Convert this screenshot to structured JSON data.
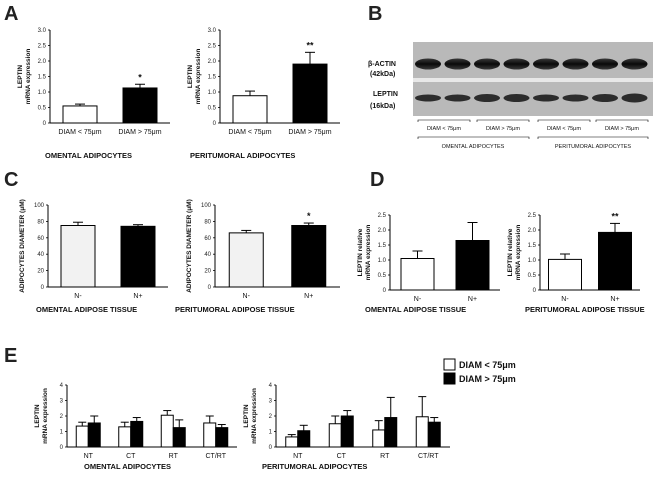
{
  "figure": {
    "panel_letters": [
      "A",
      "B",
      "C",
      "D",
      "E"
    ]
  },
  "chart_data": [
    {
      "id": "A1",
      "type": "bar",
      "panel": "A",
      "categories": [
        "DIAM < 75μm",
        "DIAM > 75μm"
      ],
      "series": [
        {
          "values": [
            0.55,
            1.13
          ],
          "errors": [
            0.06,
            0.12
          ],
          "fills": [
            "#ffffff",
            "#000000"
          ]
        }
      ],
      "ylim": [
        0,
        3
      ],
      "yticks": [
        "0",
        "0.5",
        "1.0",
        "1.5",
        "2.0",
        "2.5",
        "3.0"
      ],
      "ylabel": "LEPTIN\nmRNA expression",
      "caption": "OMENTAL ADIPOCYTES",
      "significance": [
        {
          "bar": 1,
          "text": "*"
        }
      ]
    },
    {
      "id": "A2",
      "type": "bar",
      "panel": "A",
      "categories": [
        "DIAM < 75μm",
        "DIAM > 75μm"
      ],
      "series": [
        {
          "values": [
            0.88,
            1.9
          ],
          "errors": [
            0.15,
            0.38
          ],
          "fills": [
            "#ffffff",
            "#000000"
          ]
        }
      ],
      "ylim": [
        0,
        3
      ],
      "yticks": [
        "0",
        "0.5",
        "1.0",
        "1.5",
        "2.0",
        "2.5",
        "3.0"
      ],
      "ylabel": "LEPTIN\nmRNA expression",
      "caption": "PERITUMORAL ADIPOCYTES",
      "significance": [
        {
          "bar": 1,
          "text": "**"
        }
      ]
    },
    {
      "id": "C1",
      "type": "bar",
      "panel": "C",
      "categories": [
        "N-",
        "N+"
      ],
      "series": [
        {
          "values": [
            75,
            74
          ],
          "errors": [
            4,
            2
          ],
          "fills": [
            "#f2f2f2",
            "#000000"
          ]
        }
      ],
      "ylim": [
        0,
        100
      ],
      "yticks": [
        "0",
        "20",
        "40",
        "60",
        "80",
        "100"
      ],
      "ylabel": "ADIPOCYTES DIAMETER (μM)",
      "caption": "OMENTAL ADIPOSE TISSUE",
      "significance": []
    },
    {
      "id": "C2",
      "type": "bar",
      "panel": "C",
      "categories": [
        "N-",
        "N+"
      ],
      "series": [
        {
          "values": [
            66,
            75
          ],
          "errors": [
            3,
            3
          ],
          "fills": [
            "#f2f2f2",
            "#000000"
          ]
        }
      ],
      "ylim": [
        0,
        100
      ],
      "yticks": [
        "0",
        "20",
        "40",
        "60",
        "80",
        "100"
      ],
      "ylabel": "ADIPOCYTES DIAMETER (μM)",
      "caption": "PERITUMORAL ADIPOSE TISSUE",
      "significance": [
        {
          "bar": 1,
          "text": "*"
        }
      ]
    },
    {
      "id": "D1",
      "type": "bar",
      "panel": "D",
      "categories": [
        "N-",
        "N+"
      ],
      "series": [
        {
          "values": [
            1.05,
            1.65
          ],
          "errors": [
            0.25,
            0.6
          ],
          "fills": [
            "#ffffff",
            "#000000"
          ]
        }
      ],
      "ylim": [
        0,
        2.5
      ],
      "yticks": [
        "0",
        "0.5",
        "1.0",
        "1.5",
        "2.0",
        "2.5"
      ],
      "ylabel": "LEPTIN relative\nmRNA expression",
      "caption": "OMENTAL ADIPOSE TISSUE",
      "significance": []
    },
    {
      "id": "D2",
      "type": "bar",
      "panel": "D",
      "categories": [
        "N-",
        "N+"
      ],
      "series": [
        {
          "values": [
            1.02,
            1.92
          ],
          "errors": [
            0.18,
            0.3
          ],
          "fills": [
            "#ffffff",
            "#000000"
          ]
        }
      ],
      "ylim": [
        0,
        2.5
      ],
      "yticks": [
        "0",
        "0.5",
        "1.0",
        "1.5",
        "2.0",
        "2.5"
      ],
      "ylabel": "LEPTIN relative\nmRNA expression",
      "caption": "PERITUMORAL ADIPOSE TISSUE",
      "significance": [
        {
          "bar": 1,
          "text": "**"
        }
      ]
    },
    {
      "id": "E1",
      "type": "bar",
      "panel": "E",
      "categories": [
        "NT",
        "CT",
        "RT",
        "CT/RT"
      ],
      "series": [
        {
          "name": "DIAM < 75μm",
          "values": [
            1.35,
            1.3,
            2.05,
            1.55
          ],
          "errors": [
            0.25,
            0.3,
            0.3,
            0.45
          ],
          "fill": "#ffffff"
        },
        {
          "name": "DIAM > 75μm",
          "values": [
            1.55,
            1.65,
            1.25,
            1.25
          ],
          "errors": [
            0.45,
            0.25,
            0.5,
            0.2
          ],
          "fill": "#000000"
        }
      ],
      "ylim": [
        0,
        4
      ],
      "yticks": [
        "0",
        "1",
        "2",
        "3",
        "4"
      ],
      "ylabel": "LEPTIN\nmRNA expression",
      "caption": "OMENTAL ADIPOCYTES"
    },
    {
      "id": "E2",
      "type": "bar",
      "panel": "E",
      "categories": [
        "NT",
        "CT",
        "RT",
        "CT/RT"
      ],
      "series": [
        {
          "name": "DIAM < 75μm",
          "values": [
            0.65,
            1.5,
            1.1,
            1.95
          ],
          "errors": [
            0.15,
            0.5,
            0.6,
            1.3
          ],
          "fill": "#ffffff"
        },
        {
          "name": "DIAM > 75μm",
          "values": [
            1.05,
            2.0,
            1.9,
            1.6
          ],
          "errors": [
            0.35,
            0.35,
            1.3,
            0.3
          ],
          "fill": "#000000"
        }
      ],
      "ylim": [
        0,
        4
      ],
      "yticks": [
        "0",
        "1",
        "2",
        "3",
        "4"
      ],
      "ylabel": "LEPTIN\nmRNA expression",
      "caption": "PERITUMORAL ADIPOCYTES"
    }
  ],
  "blot": {
    "labels": [
      "β-ACTIN",
      "(42kDa)",
      "LEPTIN",
      "(16kDa)"
    ],
    "lanes": [
      "DIAM < 75μm",
      "DIAM > 75μm",
      "DIAM < 75μm",
      "DIAM > 75μm"
    ],
    "groups": [
      "OMENTAL ADIPOCYTES",
      "PERITUMORAL ADIPOCYTES"
    ]
  },
  "legend": {
    "items": [
      {
        "label": "DIAM < 75μm",
        "fill": "#ffffff"
      },
      {
        "label": "DIAM > 75μm",
        "fill": "#000000"
      }
    ]
  }
}
